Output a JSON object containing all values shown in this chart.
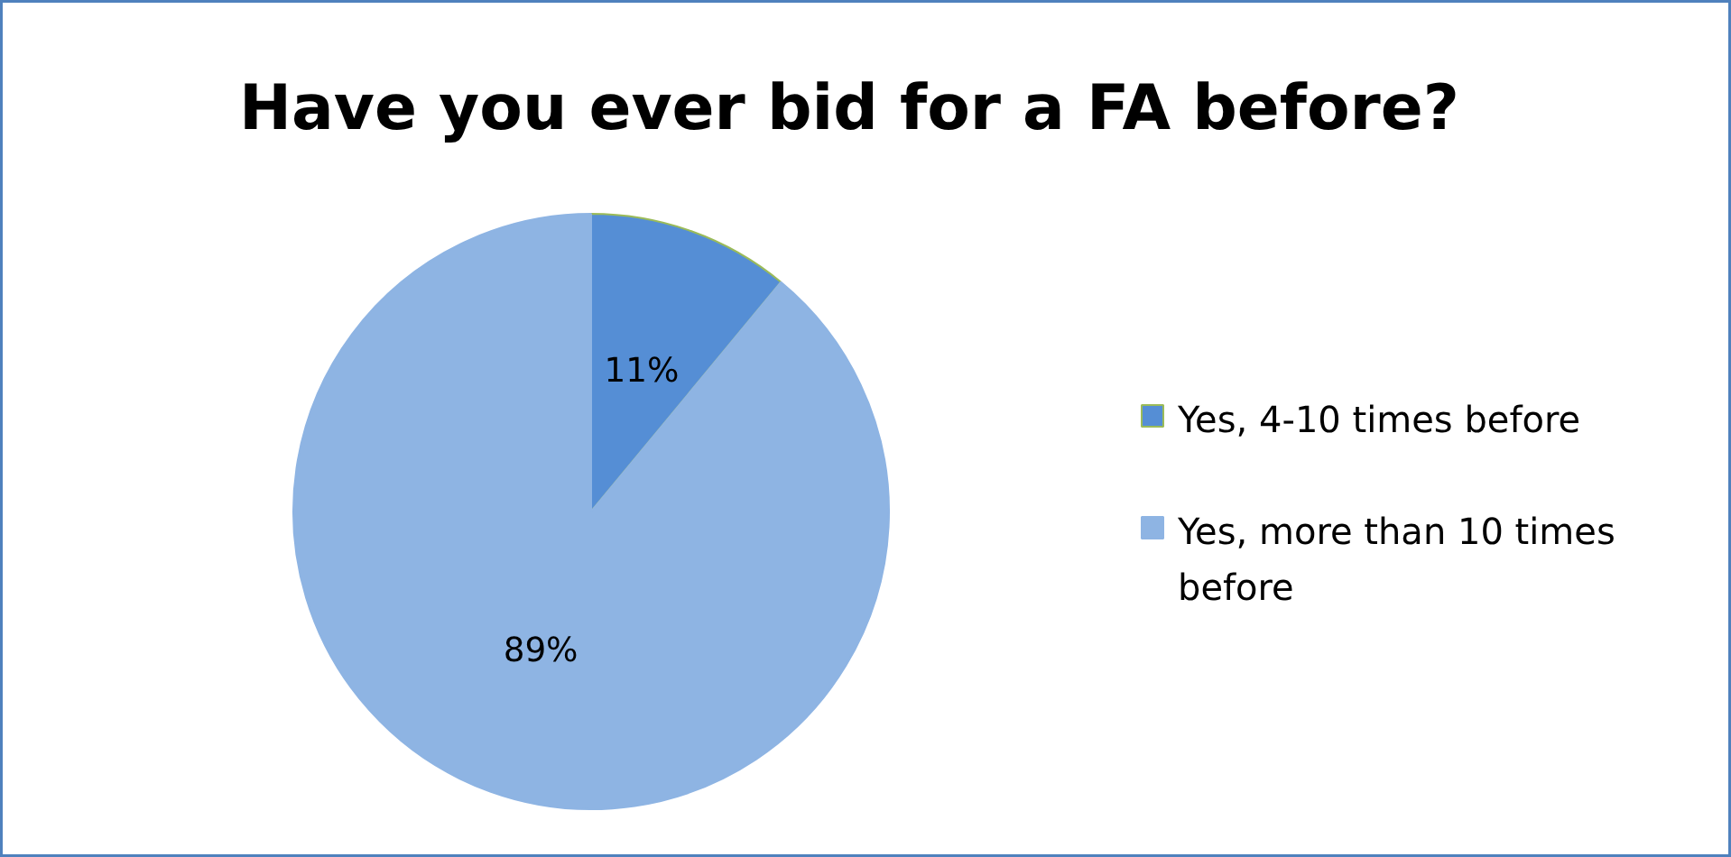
{
  "chart_data": {
    "type": "pie",
    "title": "Have you ever bid for a FA before?",
    "categories": [
      "Yes, 4-10 times before",
      "Yes, more than 10 times before"
    ],
    "values": [
      11,
      89
    ],
    "colors": [
      "#558ed5",
      "#8eb4e3"
    ],
    "value_labels": [
      "11%",
      "89%"
    ],
    "legend": "right"
  }
}
